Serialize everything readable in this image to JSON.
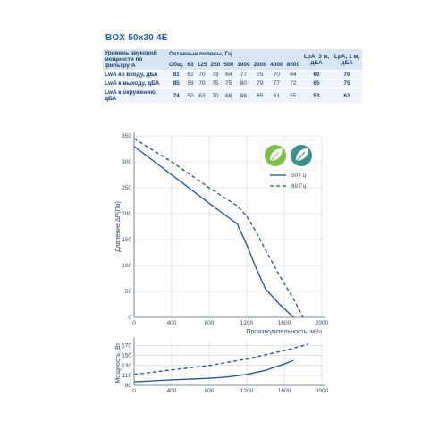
{
  "product_title": "BOX 50x30 4E",
  "sound_table": {
    "header_label": "Уровень звуковой мощности по фильтру А",
    "octave_label": "Октавные полосы, Гц",
    "bands": [
      "Общ.",
      "63",
      "125",
      "250",
      "500",
      "1000",
      "2000",
      "4000",
      "8000"
    ],
    "lpa3_label": "LpA, 3 м, дБА",
    "lpa1_label": "LpA, 1 м, дБА",
    "rows": [
      {
        "label": "LwA ко входу, дБА",
        "values": [
          "81",
          "62",
          "70",
          "73",
          "64",
          "77",
          "75",
          "70",
          "64"
        ],
        "lpa3": "60",
        "lpa1": "70"
      },
      {
        "label": "LwA к выходу, дБА",
        "values": [
          "85",
          "59",
          "70",
          "75",
          "75",
          "80",
          "79",
          "77",
          "72"
        ],
        "lpa3": "65",
        "lpa1": "75"
      },
      {
        "label": "LwA к окружению, дБА",
        "values": [
          "74",
          "50",
          "63",
          "70",
          "66",
          "66",
          "65",
          "61",
          "55"
        ],
        "lpa3": "53",
        "lpa1": "63"
      }
    ]
  },
  "chart_data": [
    {
      "type": "line",
      "ylabel": "Давление ΔP(Па)",
      "xlabel": "Производительность, м³/ч",
      "xlim": [
        0,
        2000
      ],
      "ylim": [
        0,
        350
      ],
      "x_ticks": [
        "0",
        "400",
        "800",
        "1200",
        "1600",
        "2000"
      ],
      "y_ticks": [
        "0",
        "50",
        "100",
        "150",
        "200",
        "250",
        "300",
        "350"
      ],
      "grid": true,
      "legend_position": "right",
      "series": [
        {
          "name": "50 Гц",
          "style": "solid",
          "color": "#1d4f8a",
          "points": [
            [
              0,
              330
            ],
            [
              400,
              275
            ],
            [
              800,
              220
            ],
            [
              1100,
              180
            ],
            [
              1200,
              140
            ],
            [
              1300,
              95
            ],
            [
              1400,
              55
            ],
            [
              1550,
              25
            ],
            [
              1700,
              0
            ]
          ]
        },
        {
          "name": "60 Гц",
          "style": "dashed",
          "color": "#1d4f8a",
          "points": [
            [
              0,
              345
            ],
            [
              400,
              300
            ],
            [
              800,
              250
            ],
            [
              1100,
              215
            ],
            [
              1200,
              195
            ],
            [
              1300,
              165
            ],
            [
              1400,
              130
            ],
            [
              1550,
              80
            ],
            [
              1700,
              35
            ],
            [
              1800,
              0
            ]
          ]
        }
      ]
    },
    {
      "type": "line",
      "ylabel": "Мощность, Вт",
      "xlim": [
        0,
        2000
      ],
      "ylim": [
        90,
        180
      ],
      "x_ticks": [
        "0",
        "400",
        "800",
        "1200",
        "1600",
        "2000"
      ],
      "y_ticks": [
        "90",
        "110",
        "130",
        "150",
        "170"
      ],
      "grid": true,
      "series": [
        {
          "name": "50 Гц",
          "style": "solid",
          "color": "#1d4f8a",
          "points": [
            [
              0,
              97
            ],
            [
              400,
              101
            ],
            [
              800,
              104
            ],
            [
              1000,
              107
            ],
            [
              1200,
              112
            ],
            [
              1400,
              120
            ],
            [
              1600,
              133
            ],
            [
              1700,
              140
            ]
          ]
        },
        {
          "name": "60 Гц",
          "style": "dashed",
          "color": "#1d4f8a",
          "points": [
            [
              0,
              112
            ],
            [
              400,
              121
            ],
            [
              800,
              130
            ],
            [
              1200,
              143
            ],
            [
              1600,
              160
            ],
            [
              1800,
              170
            ],
            [
              1850,
              173
            ]
          ]
        }
      ]
    }
  ]
}
